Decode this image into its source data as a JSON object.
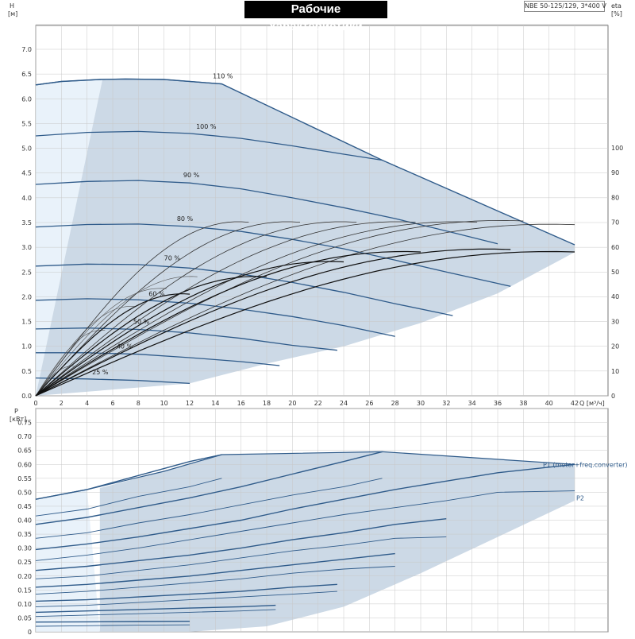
{
  "chart_title": "Рабочие характеристики",
  "model_label": "NBE 50-125/129, 3*400 V",
  "chart_data": [
    {
      "type": "line",
      "xlabel": "Q [м³/ч]",
      "ylabel": "H [м]",
      "ylabel_right": "eta [%]",
      "xlim": [
        0,
        42
      ],
      "ylim": [
        0,
        7.0
      ],
      "ylim_right": [
        0,
        100
      ],
      "grid": true,
      "x_ticks": [
        0,
        2,
        4,
        6,
        8,
        10,
        12,
        14,
        16,
        18,
        20,
        22,
        24,
        26,
        28,
        30,
        32,
        34,
        36,
        38,
        40,
        42
      ],
      "y_ticks": [
        "0.0",
        "0.5",
        "1.0",
        "1.5",
        "2.0",
        "2.5",
        "3.0",
        "3.5",
        "4.0",
        "4.5",
        "5.0",
        "5.5",
        "6.0",
        "6.5",
        "7.0"
      ],
      "y_ticks_right": [
        0,
        10,
        20,
        30,
        40,
        50,
        60,
        70,
        80,
        90,
        100
      ],
      "operating_area": {
        "upper": [
          [
            0,
            6.28
          ],
          [
            2,
            6.35
          ],
          [
            5,
            6.39
          ],
          [
            7,
            6.4
          ],
          [
            10,
            6.39
          ],
          [
            14.5,
            6.3
          ],
          [
            27,
            4.76
          ],
          [
            42,
            3.05
          ]
        ],
        "lower": [
          [
            0,
            0
          ],
          [
            12,
            0.25
          ],
          [
            18,
            0.65
          ],
          [
            24,
            1.0
          ],
          [
            30,
            1.47
          ],
          [
            36,
            2.07
          ],
          [
            42,
            2.9
          ]
        ],
        "light_boundary_x_top": 5.2
      },
      "head_curves": [
        {
          "label": "110 %",
          "label_x": 13.8,
          "label_y": 6.4,
          "points": [
            [
              0,
              6.28
            ],
            [
              2,
              6.35
            ],
            [
              5,
              6.39
            ],
            [
              7,
              6.4
            ],
            [
              10,
              6.39
            ],
            [
              14.5,
              6.3
            ]
          ]
        },
        {
          "label": "100 %",
          "label_x": 12.5,
          "label_y": 5.38,
          "points": [
            [
              0,
              5.25
            ],
            [
              4,
              5.32
            ],
            [
              8,
              5.34
            ],
            [
              12,
              5.3
            ],
            [
              16,
              5.2
            ],
            [
              20,
              5.05
            ],
            [
              24,
              4.88
            ],
            [
              27,
              4.76
            ]
          ]
        },
        {
          "label": "90 %",
          "label_x": 11.5,
          "label_y": 4.4,
          "points": [
            [
              0,
              4.27
            ],
            [
              4,
              4.33
            ],
            [
              8,
              4.35
            ],
            [
              12,
              4.3
            ],
            [
              16,
              4.18
            ],
            [
              20,
              4.0
            ],
            [
              24,
              3.8
            ],
            [
              28,
              3.58
            ],
            [
              32,
              3.33
            ],
            [
              36,
              3.07
            ]
          ]
        },
        {
          "label": "80 %",
          "label_x": 11.0,
          "label_y": 3.52,
          "points": [
            [
              0,
              3.41
            ],
            [
              4,
              3.46
            ],
            [
              8,
              3.47
            ],
            [
              12,
              3.42
            ],
            [
              16,
              3.32
            ],
            [
              20,
              3.16
            ],
            [
              24,
              2.97
            ],
            [
              28,
              2.74
            ],
            [
              32,
              2.5
            ],
            [
              36,
              2.27
            ],
            [
              37,
              2.21
            ]
          ]
        },
        {
          "label": "70 %",
          "label_x": 10.0,
          "label_y": 2.72,
          "points": [
            [
              0,
              2.62
            ],
            [
              4,
              2.66
            ],
            [
              8,
              2.65
            ],
            [
              12,
              2.58
            ],
            [
              16,
              2.46
            ],
            [
              20,
              2.29
            ],
            [
              24,
              2.09
            ],
            [
              28,
              1.86
            ],
            [
              32.5,
              1.62
            ]
          ]
        },
        {
          "label": "60 %",
          "label_x": 8.8,
          "label_y": 2.0,
          "points": [
            [
              0,
              1.93
            ],
            [
              4,
              1.96
            ],
            [
              8,
              1.94
            ],
            [
              12,
              1.87
            ],
            [
              16,
              1.75
            ],
            [
              20,
              1.6
            ],
            [
              24,
              1.42
            ],
            [
              28,
              1.2
            ]
          ]
        },
        {
          "label": "50 %",
          "label_x": 7.6,
          "label_y": 1.44,
          "points": [
            [
              0,
              1.35
            ],
            [
              4,
              1.37
            ],
            [
              8,
              1.34
            ],
            [
              12,
              1.27
            ],
            [
              16,
              1.16
            ],
            [
              20,
              1.02
            ],
            [
              23.5,
              0.92
            ]
          ]
        },
        {
          "label": "40 %",
          "label_x": 6.3,
          "label_y": 0.94,
          "points": [
            [
              0,
              0.87
            ],
            [
              4,
              0.87
            ],
            [
              8,
              0.84
            ],
            [
              12,
              0.77
            ],
            [
              16,
              0.69
            ],
            [
              19,
              0.61
            ]
          ]
        },
        {
          "label": "25 %",
          "label_x": 4.4,
          "label_y": 0.42,
          "points": [
            [
              0,
              0.36
            ],
            [
              4,
              0.34
            ],
            [
              8,
              0.31
            ],
            [
              12,
              0.25
            ]
          ]
        }
      ],
      "efficiency_curves_thin": [
        {
          "end_x": 12.0,
          "end_eta": 41
        },
        {
          "end_x": 18.0,
          "end_eta": 48
        },
        {
          "end_x": 24.0,
          "end_eta": 54
        },
        {
          "end_x": 30.0,
          "end_eta": 58
        },
        {
          "end_x": 37.0,
          "end_eta": 59
        },
        {
          "end_x": 42.0,
          "end_eta": 58
        }
      ],
      "efficiency_curves_medium": [
        {
          "end_x": 16.6,
          "end_eta": 70
        },
        {
          "end_x": 20.6,
          "end_eta": 70
        },
        {
          "end_x": 25.0,
          "end_eta": 70
        },
        {
          "end_x": 29.6,
          "end_eta": 70
        },
        {
          "end_x": 34.4,
          "end_eta": 70
        },
        {
          "end_x": 38.0,
          "end_eta": 70.5
        },
        {
          "end_x": 42.0,
          "end_eta": 69
        }
      ]
    },
    {
      "type": "line",
      "xlabel": "",
      "ylabel": "P [кВт]",
      "xlim": [
        0,
        42
      ],
      "ylim": [
        0,
        0.8
      ],
      "grid": true,
      "y_ticks": [
        "0",
        "0.05",
        "0.10",
        "0.15",
        "0.20",
        "0.25",
        "0.30",
        "0.35",
        "0.40",
        "0.45",
        "0.50",
        "0.55",
        "0.60",
        "0.65",
        "0.70",
        "0.75"
      ],
      "series_labels": [
        "P1 (motor+freq.converter)",
        "P2"
      ],
      "operating_area": {
        "upper": [
          [
            0,
            0.475
          ],
          [
            4,
            0.51
          ],
          [
            10,
            0.575
          ],
          [
            14.5,
            0.635
          ],
          [
            27,
            0.645
          ],
          [
            42,
            0.6
          ]
        ],
        "lower": [
          [
            0,
            0
          ],
          [
            12,
            0
          ],
          [
            18,
            0.02
          ],
          [
            24,
            0.09
          ],
          [
            30,
            0.21
          ],
          [
            36,
            0.34
          ],
          [
            42,
            0.47
          ]
        ],
        "light_boundary_x_top": 5.0
      },
      "p1_curves": [
        {
          "points": [
            [
              0,
              0.475
            ],
            [
              4,
              0.51
            ],
            [
              8,
              0.56
            ],
            [
              12,
              0.61
            ],
            [
              14.5,
              0.635
            ]
          ]
        },
        {
          "points": [
            [
              0,
              0.385
            ],
            [
              4,
              0.41
            ],
            [
              8,
              0.445
            ],
            [
              12,
              0.48
            ],
            [
              16,
              0.52
            ],
            [
              20,
              0.565
            ],
            [
              24,
              0.61
            ],
            [
              27,
              0.645
            ]
          ]
        },
        {
          "points": [
            [
              0,
              0.295
            ],
            [
              4,
              0.315
            ],
            [
              8,
              0.34
            ],
            [
              12,
              0.37
            ],
            [
              16,
              0.4
            ],
            [
              20,
              0.44
            ],
            [
              24,
              0.475
            ],
            [
              28,
              0.51
            ],
            [
              32,
              0.54
            ],
            [
              36,
              0.57
            ],
            [
              42,
              0.6
            ]
          ]
        },
        {
          "points": [
            [
              0,
              0.22
            ],
            [
              4,
              0.235
            ],
            [
              8,
              0.255
            ],
            [
              12,
              0.275
            ],
            [
              16,
              0.3
            ],
            [
              20,
              0.33
            ],
            [
              24,
              0.355
            ],
            [
              28,
              0.385
            ],
            [
              32,
              0.405
            ]
          ]
        },
        {
          "points": [
            [
              0,
              0.16
            ],
            [
              4,
              0.17
            ],
            [
              8,
              0.185
            ],
            [
              12,
              0.2
            ],
            [
              16,
              0.22
            ],
            [
              20,
              0.24
            ],
            [
              24,
              0.26
            ],
            [
              28,
              0.28
            ]
          ]
        },
        {
          "points": [
            [
              0,
              0.11
            ],
            [
              4,
              0.115
            ],
            [
              8,
              0.125
            ],
            [
              12,
              0.135
            ],
            [
              16,
              0.145
            ],
            [
              20,
              0.16
            ],
            [
              23.5,
              0.17
            ]
          ]
        },
        {
          "points": [
            [
              0,
              0.07
            ],
            [
              4,
              0.075
            ],
            [
              8,
              0.08
            ],
            [
              12,
              0.085
            ],
            [
              16,
              0.09
            ],
            [
              18.7,
              0.095
            ]
          ]
        },
        {
          "points": [
            [
              0,
              0.035
            ],
            [
              4,
              0.036
            ],
            [
              8,
              0.037
            ],
            [
              12,
              0.038
            ]
          ]
        }
      ],
      "p2_curves": [
        {
          "points": [
            [
              0,
              0.415
            ],
            [
              4,
              0.44
            ],
            [
              8,
              0.485
            ],
            [
              12,
              0.52
            ],
            [
              14.5,
              0.55
            ]
          ]
        },
        {
          "points": [
            [
              0,
              0.335
            ],
            [
              4,
              0.355
            ],
            [
              8,
              0.39
            ],
            [
              12,
              0.42
            ],
            [
              16,
              0.455
            ],
            [
              20,
              0.49
            ],
            [
              24,
              0.52
            ],
            [
              27,
              0.55
            ]
          ]
        },
        {
          "points": [
            [
              0,
              0.255
            ],
            [
              4,
              0.275
            ],
            [
              8,
              0.3
            ],
            [
              12,
              0.33
            ],
            [
              16,
              0.36
            ],
            [
              20,
              0.39
            ],
            [
              24,
              0.42
            ],
            [
              28,
              0.445
            ],
            [
              32,
              0.47
            ],
            [
              36,
              0.5
            ],
            [
              42,
              0.505
            ]
          ]
        },
        {
          "points": [
            [
              0,
              0.19
            ],
            [
              4,
              0.2
            ],
            [
              8,
              0.22
            ],
            [
              12,
              0.24
            ],
            [
              16,
              0.265
            ],
            [
              20,
              0.29
            ],
            [
              24,
              0.31
            ],
            [
              28,
              0.335
            ],
            [
              32,
              0.34
            ]
          ]
        },
        {
          "points": [
            [
              0,
              0.135
            ],
            [
              4,
              0.145
            ],
            [
              8,
              0.16
            ],
            [
              12,
              0.175
            ],
            [
              16,
              0.19
            ],
            [
              20,
              0.21
            ],
            [
              24,
              0.225
            ],
            [
              28,
              0.235
            ]
          ]
        },
        {
          "points": [
            [
              0,
              0.09
            ],
            [
              4,
              0.095
            ],
            [
              8,
              0.105
            ],
            [
              12,
              0.115
            ],
            [
              16,
              0.125
            ],
            [
              20,
              0.135
            ],
            [
              23.5,
              0.145
            ]
          ]
        },
        {
          "points": [
            [
              0,
              0.055
            ],
            [
              4,
              0.06
            ],
            [
              8,
              0.065
            ],
            [
              12,
              0.07
            ],
            [
              16,
              0.075
            ],
            [
              18.7,
              0.08
            ]
          ]
        },
        {
          "points": [
            [
              0,
              0.02
            ],
            [
              4,
              0.022
            ],
            [
              8,
              0.024
            ],
            [
              12,
              0.025
            ]
          ]
        }
      ]
    }
  ]
}
